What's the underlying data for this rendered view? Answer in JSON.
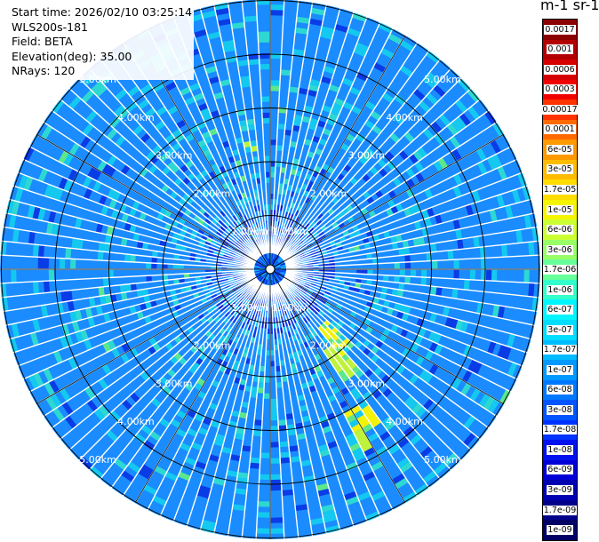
{
  "info": {
    "start_time": "Start time: 2026/02/10 03:25:14",
    "instrument": "WLS200s-181",
    "field": "Field: BETA",
    "elevation": "Elevation(deg): 35.00",
    "nrays": "NRays: 120"
  },
  "colorbar": {
    "title": "m-1 sr-1",
    "labels": [
      "0.0017",
      "0.001",
      "0.0006",
      "0.0003",
      "0.00017",
      "0.0001",
      "6e-05",
      "3e-05",
      "1.7e-05",
      "1e-05",
      "6e-06",
      "3e-06",
      "1.7e-06",
      "1e-06",
      "6e-07",
      "3e-07",
      "1.7e-07",
      "1e-07",
      "6e-08",
      "3e-08",
      "1.7e-08",
      "1e-08",
      "6e-09",
      "3e-09",
      "1.7e-09",
      "1e-09"
    ],
    "colors": [
      "#8b0000",
      "#b30000",
      "#d60000",
      "#f00000",
      "#ff3300",
      "#ff6a00",
      "#ff9900",
      "#ffbb00",
      "#ffdd00",
      "#f5f500",
      "#ccff33",
      "#99ff66",
      "#66ff99",
      "#33ffcc",
      "#00f5ff",
      "#00ddff",
      "#00bbff",
      "#0099ff",
      "#0077ff",
      "#0055ff",
      "#0033ff",
      "#0011f0",
      "#0000d6",
      "#0000b3",
      "#00008b",
      "#000066"
    ]
  },
  "range_rings": {
    "labels": [
      "1.00km",
      "2.00km",
      "3.00km",
      "4.00km",
      "5.00km"
    ]
  }
}
